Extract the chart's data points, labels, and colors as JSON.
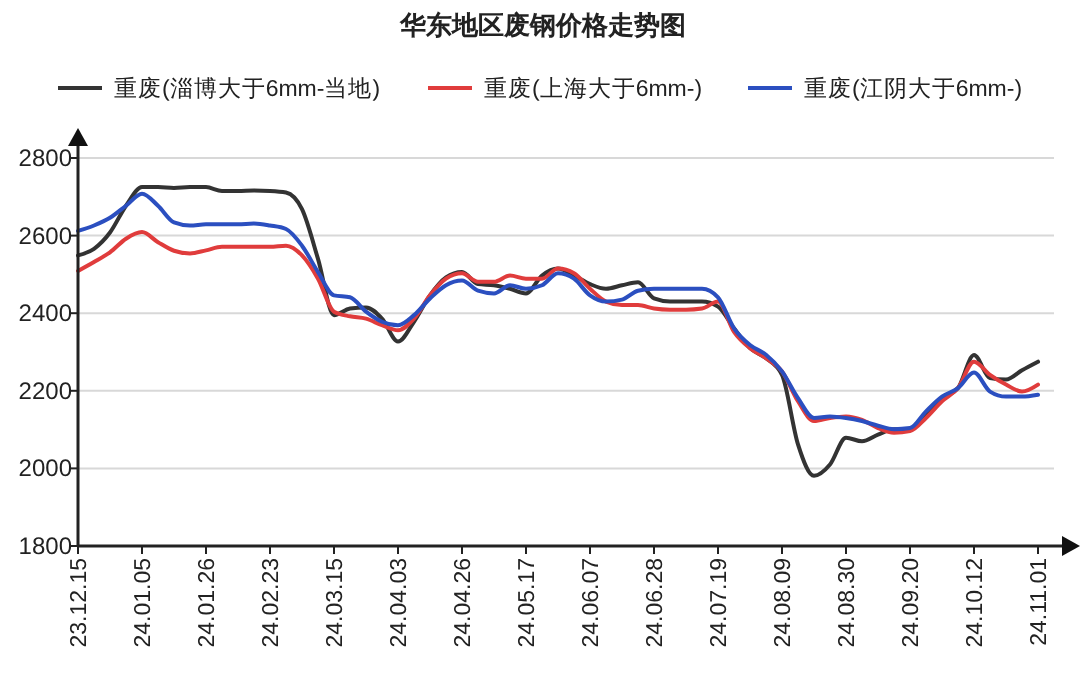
{
  "chart_data": {
    "type": "line",
    "title": "华东地区废钢价格走势图",
    "categories": [
      "23.12.15",
      null,
      null,
      null,
      "24.01.05",
      null,
      null,
      null,
      "24.01.26",
      null,
      null,
      null,
      "24.02.23",
      null,
      null,
      null,
      "24.03.15",
      null,
      null,
      null,
      "24.04.03",
      null,
      null,
      null,
      "24.04.26",
      null,
      null,
      null,
      "24.05.17",
      null,
      null,
      null,
      "24.06.07",
      null,
      null,
      null,
      "24.06.28",
      null,
      null,
      null,
      "24.07.19",
      null,
      null,
      null,
      "24.08.09",
      null,
      null,
      null,
      "24.08.30",
      null,
      null,
      null,
      "24.09.20",
      null,
      null,
      null,
      "24.10.12",
      null,
      null,
      null,
      "24.11.01"
    ],
    "series": [
      {
        "name": "重废(淄博大于6mm-当地)",
        "color": "#333333",
        "values": [
          2549,
          2566,
          2608,
          2677,
          2725,
          2725,
          2723,
          2725,
          2725,
          2715,
          2715,
          2716,
          2715,
          2711,
          2668,
          2540,
          2395,
          2412,
          2415,
          2386,
          2327,
          2378,
          2446,
          2492,
          2506,
          2475,
          2472,
          2463,
          2451,
          2497,
          2515,
          2497,
          2475,
          2463,
          2472,
          2480,
          2438,
          2430,
          2430,
          2430,
          2417,
          2361,
          2310,
          2284,
          2241,
          2062,
          1981,
          2010,
          2079,
          2070,
          2087,
          2101,
          2101,
          2139,
          2181,
          2207,
          2292,
          2233,
          2229,
          2253,
          2275
        ]
      },
      {
        "name": "重废(上海大于6mm-)",
        "color": "#e03c3c",
        "values": [
          2509,
          2532,
          2557,
          2592,
          2609,
          2583,
          2561,
          2554,
          2562,
          2571,
          2571,
          2571,
          2571,
          2574,
          2549,
          2489,
          2404,
          2392,
          2386,
          2369,
          2356,
          2386,
          2446,
          2489,
          2503,
          2481,
          2481,
          2497,
          2489,
          2489,
          2515,
          2503,
          2463,
          2430,
          2421,
          2421,
          2412,
          2409,
          2409,
          2412,
          2430,
          2352,
          2310,
          2284,
          2250,
          2173,
          2122,
          2130,
          2134,
          2125,
          2104,
          2092,
          2096,
          2130,
          2173,
          2207,
          2275,
          2241,
          2216,
          2198,
          2216
        ]
      },
      {
        "name": "重废(江阴大于6mm-)",
        "color": "#2b4fc0",
        "values": [
          2612,
          2626,
          2646,
          2677,
          2708,
          2677,
          2634,
          2626,
          2629,
          2629,
          2629,
          2631,
          2626,
          2617,
          2574,
          2506,
          2446,
          2441,
          2404,
          2378,
          2369,
          2395,
          2438,
          2472,
          2484,
          2458,
          2451,
          2472,
          2463,
          2472,
          2503,
          2489,
          2446,
          2430,
          2435,
          2458,
          2463,
          2463,
          2463,
          2463,
          2441,
          2361,
          2318,
          2293,
          2250,
          2181,
          2130,
          2134,
          2130,
          2122,
          2110,
          2101,
          2104,
          2147,
          2185,
          2207,
          2247,
          2198,
          2185,
          2185,
          2190
        ]
      }
    ],
    "ylim": [
      1800,
      2800
    ],
    "yticks": [
      1800,
      2000,
      2200,
      2400,
      2600,
      2800
    ],
    "grid": "y",
    "legend": "top",
    "marker": "none",
    "line_style": "solid"
  }
}
